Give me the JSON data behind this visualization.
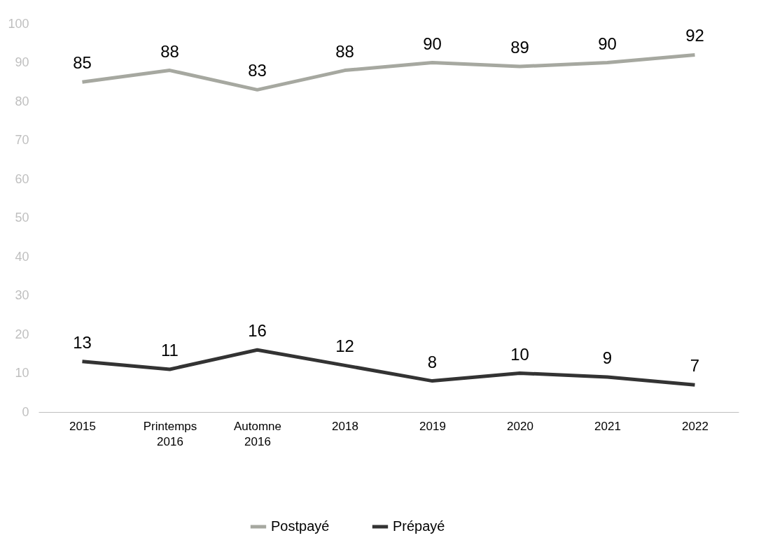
{
  "chart_data": {
    "type": "line",
    "categories": [
      "2015",
      "Printemps 2016",
      "Automne 2016",
      "2018",
      "2019",
      "2020",
      "2021",
      "2022"
    ],
    "series": [
      {
        "name": "Postpayé",
        "color": "#a6a8a0",
        "values": [
          85,
          88,
          83,
          88,
          90,
          89,
          90,
          92
        ]
      },
      {
        "name": "Prépayé",
        "color": "#333333",
        "values": [
          13,
          11,
          16,
          12,
          8,
          10,
          9,
          7
        ]
      }
    ],
    "ylim": [
      0,
      100
    ],
    "yticks": [
      0,
      10,
      20,
      30,
      40,
      50,
      60,
      70,
      80,
      90,
      100
    ],
    "grid": false,
    "legend": "bottom",
    "data_labels": true,
    "marker": "none",
    "line_style": "solid"
  }
}
